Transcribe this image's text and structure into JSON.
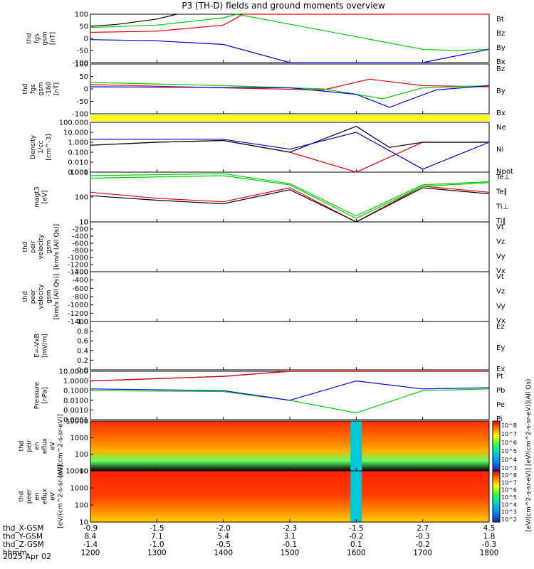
{
  "title": "P3 (TH-D) fields and ground moments overview",
  "date_label": "2025 Apr 02",
  "colors": {
    "black": "#000000",
    "red": "#e8000b",
    "green": "#00cc00",
    "blue": "#0000e0",
    "yellow": "#ffff00"
  },
  "panels": [
    {
      "id": "fgs",
      "ylabel": [
        "thd",
        "fgs",
        "gsm",
        "[nT]"
      ],
      "ticks": [
        "100",
        "50",
        "0",
        "-50",
        "-100"
      ],
      "legend": [
        [
          "Bt",
          "black"
        ],
        [
          "Bz",
          "red"
        ],
        [
          "By",
          "green"
        ],
        [
          "Bx",
          "blue"
        ]
      ]
    },
    {
      "id": "fgs-dsl",
      "ylabel": [
        "thd",
        "fgs",
        "gsm",
        "-160",
        "[nT]"
      ],
      "ticks": [
        "100",
        "50",
        "0",
        "-50",
        "-100"
      ],
      "legend": [
        [
          "Bz",
          "red"
        ],
        [
          "By",
          "green"
        ],
        [
          "Bx",
          "blue"
        ]
      ]
    },
    {
      "id": "density",
      "ylabel": [
        "Density",
        "1/cc",
        "[cm^-3]"
      ],
      "ticks": [
        "100.000",
        "10.000",
        "1.000",
        "0.100",
        "0.010",
        "0.001"
      ],
      "legend": [
        [
          "Ne",
          "red"
        ],
        [
          "Ni",
          "black"
        ],
        [
          "Npot",
          "blue"
        ]
      ]
    },
    {
      "id": "temp",
      "ylabel": [
        "magt3",
        "[eV]"
      ],
      "ticks": [
        "1000",
        "100",
        "10"
      ],
      "legend": [
        [
          "Te⊥",
          "red"
        ],
        [
          "Te∥",
          "black"
        ],
        [
          "Ti⊥",
          "green"
        ],
        [
          "Ti∥",
          "green"
        ]
      ]
    },
    {
      "id": "peir-vel",
      "ylabel": [
        "thd",
        "peir",
        "velocity",
        "gsm",
        "[km/s (All Qs)]"
      ],
      "ticks": [
        "0",
        "-200",
        "-400",
        "-600",
        "-800",
        "-1000",
        "-1200",
        "-1400"
      ],
      "legend": [
        [
          "Vt",
          "black"
        ],
        [
          "Vz",
          "red"
        ],
        [
          "Vy",
          "green"
        ],
        [
          "Vx",
          "blue"
        ]
      ]
    },
    {
      "id": "peer-vel",
      "ylabel": [
        "thd",
        "peer",
        "velocity",
        "gsm",
        "[km/s (All Qs)]"
      ],
      "ticks": [
        "-200",
        "-400",
        "-600",
        "-800",
        "-1000",
        "-1200",
        "-1400"
      ],
      "legend": [
        [
          "Vt",
          "black"
        ],
        [
          "Vz",
          "red"
        ],
        [
          "Vy",
          "green"
        ],
        [
          "Vx",
          "blue"
        ]
      ]
    },
    {
      "id": "efield",
      "ylabel": [
        "E=-VxB",
        "[mV/m]"
      ],
      "ticks": [
        "1.0",
        "0.8",
        "0.6",
        "0.4",
        "0.2",
        "0.0"
      ],
      "legend": [
        [
          "Ez",
          "red"
        ],
        [
          "Ey",
          "green"
        ],
        [
          "Ex",
          "blue"
        ]
      ]
    },
    {
      "id": "pressure",
      "ylabel": [
        "Pressure",
        "[nPa]"
      ],
      "ticks": [
        "10.0000",
        "1.0000",
        "0.1000",
        "0.0100",
        "0.0010",
        "0.0001"
      ],
      "legend": [
        [
          "Pt",
          "black"
        ],
        [
          "Pb",
          "red"
        ],
        [
          "Pe",
          "green"
        ],
        [
          "Pi",
          "blue"
        ]
      ]
    },
    {
      "id": "peir-spec",
      "ylabel": [
        "thd",
        "peir",
        "en",
        "eflux",
        "eV",
        "[eV/(cm^2-s-sr-eV)]"
      ],
      "ticks": [
        "10000",
        "1000",
        "100",
        "10"
      ],
      "colorbar": [
        "10^8",
        "10^7",
        "10^6",
        "10^5",
        "10^4",
        "10^3"
      ]
    },
    {
      "id": "peer-spec",
      "ylabel": [
        "thd",
        "peer",
        "en",
        "eflux",
        "eV",
        "[eV/(cm^2-s-sr-eV)]"
      ],
      "ticks": [
        "10000",
        "1000",
        "100",
        "10"
      ],
      "colorbar": [
        "10^8",
        "10^7",
        "10^6",
        "10^5",
        "10^4",
        "10^3",
        "10^2"
      ]
    }
  ],
  "colorbar_title": "[eV/(cm^2-s-sr-eV)] [eV/(cm^2-s-sr-eV)](All Qs)",
  "xaxis": {
    "rows": [
      {
        "label": "thd_X-GSM",
        "values": [
          "-0.9",
          "-1.5",
          "-2.0",
          "-2.3",
          "-1.5",
          "2.7",
          "4.5"
        ]
      },
      {
        "label": "thd_Y-GSM",
        "values": [
          "8.4",
          "7.1",
          "5.4",
          "3.1",
          "-0.2",
          "-0.3",
          "1.8"
        ]
      },
      {
        "label": "thd_Z-GSM",
        "values": [
          "-1.4",
          "-1.0",
          "-0.5",
          "-0.1",
          "0.1",
          "-0.2",
          "-0.3"
        ]
      },
      {
        "label": "hhmm",
        "values": [
          "1200",
          "1300",
          "1400",
          "1500",
          "1600",
          "1700",
          "1800"
        ]
      }
    ]
  },
  "chart_data": {
    "type": "line",
    "title": "P3 (TH-D) fields and ground moments overview",
    "x_label": "hhmm",
    "x_ticks": [
      "1200",
      "1300",
      "1400",
      "1500",
      "1600",
      "1700",
      "1800"
    ],
    "panels": [
      {
        "name": "fgs gsm [nT]",
        "ylim": [
          -100,
          100
        ],
        "series": [
          {
            "name": "Bt",
            "approx": [
              [
                1200,
                50
              ],
              [
                1240,
                58
              ],
              [
                1300,
                80
              ],
              [
                1330,
                100
              ]
            ]
          },
          {
            "name": "Bz",
            "approx": [
              [
                1200,
                25
              ],
              [
                1300,
                30
              ],
              [
                1400,
                55
              ],
              [
                1430,
                100
              ],
              [
                1700,
                100
              ],
              [
                1740,
                100
              ],
              [
                1800,
                100
              ]
            ]
          },
          {
            "name": "By",
            "approx": [
              [
                1200,
                45
              ],
              [
                1300,
                55
              ],
              [
                1400,
                85
              ],
              [
                1420,
                100
              ],
              [
                1700,
                -45
              ],
              [
                1750,
                -50
              ],
              [
                1800,
                -45
              ]
            ]
          },
          {
            "name": "Bx",
            "approx": [
              [
                1200,
                -5
              ],
              [
                1300,
                -10
              ],
              [
                1400,
                -25
              ],
              [
                1500,
                -100
              ],
              [
                1700,
                -100
              ],
              [
                1800,
                -45
              ]
            ]
          }
        ]
      },
      {
        "name": "fgs gsm -160 [nT]",
        "ylim": [
          -130,
          100
        ],
        "series": [
          {
            "name": "Bz",
            "approx": [
              [
                1200,
                5
              ],
              [
                1400,
                -10
              ],
              [
                1550,
                -20
              ],
              [
                1620,
                30
              ],
              [
                1700,
                0
              ],
              [
                1800,
                -5
              ]
            ]
          },
          {
            "name": "By",
            "approx": [
              [
                1200,
                15
              ],
              [
                1400,
                0
              ],
              [
                1550,
                -15
              ],
              [
                1640,
                -60
              ],
              [
                1700,
                -10
              ],
              [
                1800,
                0
              ]
            ]
          },
          {
            "name": "Bx",
            "approx": [
              [
                1200,
                -5
              ],
              [
                1500,
                -10
              ],
              [
                1600,
                -40
              ],
              [
                1650,
                -100
              ],
              [
                1720,
                -20
              ],
              [
                1800,
                0
              ]
            ]
          }
        ]
      },
      {
        "name": "Density [cm^-3]",
        "scale": "log",
        "ylim": [
          0.001,
          100
        ],
        "series": [
          {
            "name": "Ne",
            "approx": [
              [
                1200,
                0.5
              ],
              [
                1300,
                1
              ],
              [
                1400,
                1.5
              ],
              [
                1500,
                0.1
              ],
              [
                1600,
                0.001
              ],
              [
                1700,
                1
              ],
              [
                1800,
                1
              ]
            ]
          },
          {
            "name": "Ni",
            "approx": [
              [
                1200,
                0.5
              ],
              [
                1300,
                1
              ],
              [
                1400,
                1.5
              ],
              [
                1500,
                0.1
              ],
              [
                1600,
                40
              ],
              [
                1650,
                0.3
              ],
              [
                1700,
                1
              ],
              [
                1800,
                1
              ]
            ]
          },
          {
            "name": "Npot",
            "approx": [
              [
                1200,
                2
              ],
              [
                1400,
                2
              ],
              [
                1500,
                0.2
              ],
              [
                1600,
                10
              ],
              [
                1700,
                0.002
              ],
              [
                1800,
                1
              ]
            ]
          }
        ]
      },
      {
        "name": "magt3 [eV]",
        "scale": "log",
        "ylim": [
          10,
          3000
        ],
        "series": [
          {
            "name": "Te⊥",
            "approx": [
              [
                1200,
                300
              ],
              [
                1300,
                150
              ],
              [
                1400,
                100
              ],
              [
                1500,
                500
              ],
              [
                1600,
                10
              ],
              [
                1700,
                600
              ],
              [
                1800,
                300
              ]
            ]
          },
          {
            "name": "Te∥",
            "approx": [
              [
                1200,
                200
              ],
              [
                1300,
                120
              ],
              [
                1400,
                80
              ],
              [
                1500,
                400
              ],
              [
                1600,
                8
              ],
              [
                1700,
                500
              ],
              [
                1800,
                250
              ]
            ]
          },
          {
            "name": "Ti⊥",
            "approx": [
              [
                1200,
                2000
              ],
              [
                1400,
                2500
              ],
              [
                1500,
                800
              ],
              [
                1600,
                20
              ],
              [
                1700,
                700
              ],
              [
                1800,
                1000
              ]
            ]
          },
          {
            "name": "Ti∥",
            "approx": [
              [
                1200,
                1500
              ],
              [
                1400,
                2000
              ],
              [
                1500,
                700
              ],
              [
                1600,
                15
              ],
              [
                1700,
                600
              ],
              [
                1800,
                900
              ]
            ]
          }
        ]
      },
      {
        "name": "Pressure [nPa]",
        "scale": "log",
        "ylim": [
          0.0001,
          10
        ],
        "series": [
          {
            "name": "Pt",
            "approx": [
              [
                1200,
                1
              ],
              [
                1400,
                3
              ],
              [
                1500,
                10
              ],
              [
                1800,
                10
              ]
            ]
          },
          {
            "name": "Pb",
            "approx": [
              [
                1200,
                1
              ],
              [
                1400,
                3
              ],
              [
                1500,
                10
              ],
              [
                1800,
                10
              ]
            ]
          },
          {
            "name": "Pe",
            "approx": [
              [
                1200,
                0.1
              ],
              [
                1400,
                0.08
              ],
              [
                1500,
                0.01
              ],
              [
                1600,
                0.0005
              ],
              [
                1700,
                0.1
              ],
              [
                1800,
                0.15
              ]
            ]
          },
          {
            "name": "Pi",
            "approx": [
              [
                1200,
                0.15
              ],
              [
                1400,
                0.1
              ],
              [
                1500,
                0.01
              ],
              [
                1600,
                1
              ],
              [
                1700,
                0.15
              ],
              [
                1800,
                0.2
              ]
            ]
          }
        ]
      }
    ]
  }
}
